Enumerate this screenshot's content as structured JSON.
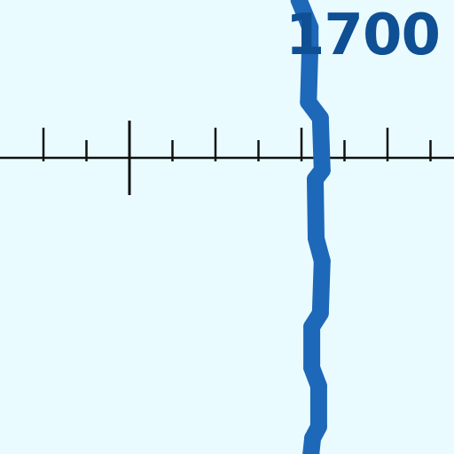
{
  "year_label": "1700",
  "colors": {
    "background": "#e9fbff",
    "line": "#1d68b8",
    "axis": "#111111",
    "label": "#0f4f94"
  },
  "chart_data": {
    "type": "line",
    "title": "",
    "xlabel": "",
    "ylabel": "",
    "grid": false,
    "x_axis": {
      "range": [
        -2.4,
        5.0
      ],
      "origin_tick": 0,
      "tick_step": 0.5,
      "ticks": [
        -2.0,
        -1.5,
        -1.0,
        -0.5,
        0.0,
        0.5,
        1.0,
        1.5,
        2.0,
        2.5,
        3.0,
        3.5,
        4.0,
        4.5,
        5.0
      ]
    },
    "y_range": [
      -1.0,
      1.0
    ],
    "series": [
      {
        "name": "",
        "points": [
          {
            "x": 0.97,
            "y": 1.0
          },
          {
            "x": 1.1,
            "y": 0.88
          },
          {
            "x": 1.1,
            "y": 0.8
          },
          {
            "x": 1.08,
            "y": 0.55
          },
          {
            "x": 1.22,
            "y": 0.48
          },
          {
            "x": 1.24,
            "y": 0.25
          },
          {
            "x": 1.16,
            "y": 0.21
          },
          {
            "x": 1.17,
            "y": -0.05
          },
          {
            "x": 1.24,
            "y": -0.15
          },
          {
            "x": 1.22,
            "y": -0.38
          },
          {
            "x": 1.12,
            "y": -0.44
          },
          {
            "x": 1.12,
            "y": -0.62
          },
          {
            "x": 1.2,
            "y": -0.7
          },
          {
            "x": 1.2,
            "y": -0.88
          },
          {
            "x": 1.13,
            "y": -0.93
          },
          {
            "x": 1.11,
            "y": -1.0
          }
        ]
      }
    ]
  }
}
